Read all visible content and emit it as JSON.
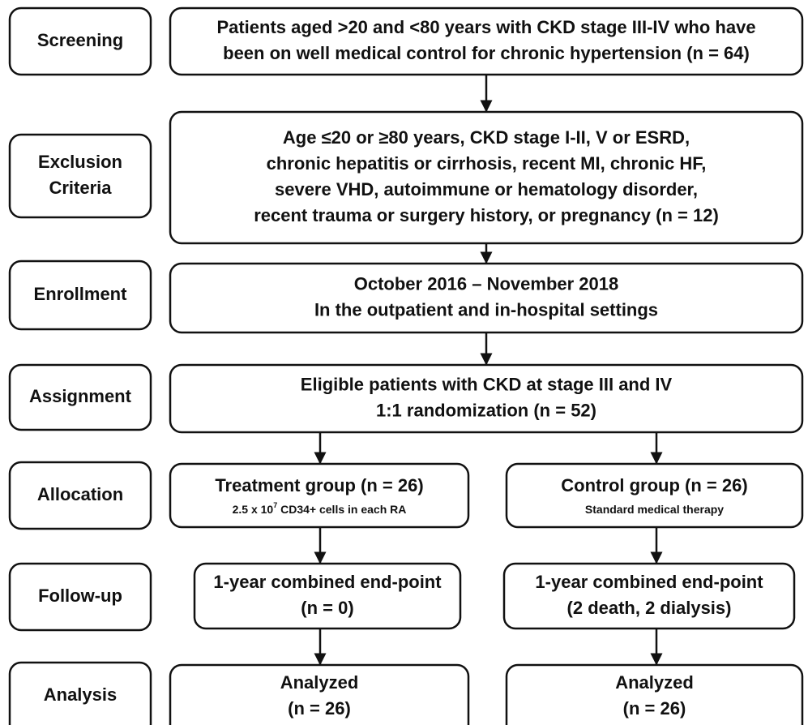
{
  "rows": [
    {
      "label": [
        "Screening"
      ],
      "boxes": [
        {
          "lines": [
            "Patients aged >20 and <80 years with CKD stage III-IV who have",
            "been on well medical control for chronic hypertension (n = 64)"
          ]
        }
      ]
    },
    {
      "label": [
        "Exclusion",
        "Criteria"
      ],
      "boxes": [
        {
          "lines": [
            "Age ≤20 or ≥80 years, CKD stage I-II, V or ESRD,",
            "chronic hepatitis or cirrhosis, recent MI, chronic HF,",
            "severe VHD, autoimmune or hematology disorder,",
            "recent trauma or surgery history, or pregnancy (n = 12)"
          ]
        }
      ]
    },
    {
      "label": [
        "Enrollment"
      ],
      "boxes": [
        {
          "lines": [
            "October 2016 – November 2018",
            "In the outpatient and in-hospital settings"
          ]
        }
      ]
    },
    {
      "label": [
        "Assignment"
      ],
      "boxes": [
        {
          "lines": [
            "Eligible patients with CKD at stage III and IV",
            "1:1 randomization (n = 52)"
          ]
        }
      ]
    },
    {
      "label": [
        "Allocation"
      ],
      "boxes": [
        {
          "lines": [
            "Treatment group (n = 26)"
          ],
          "note": [
            "2.5 x 10",
            "7",
            " CD34+ cells in each RA"
          ]
        },
        {
          "lines": [
            "Control group (n = 26)"
          ],
          "note": [
            "Standard medical therapy"
          ]
        }
      ]
    },
    {
      "label": [
        "Follow-up"
      ],
      "boxes": [
        {
          "lines": [
            "1-year combined end-point",
            "(n = 0)"
          ]
        },
        {
          "lines": [
            "1-year combined end-point",
            "(2 death, 2 dialysis)"
          ]
        }
      ]
    },
    {
      "label": [
        "Analysis"
      ],
      "boxes": [
        {
          "lines": [
            "Analyzed",
            "(n = 26)"
          ]
        },
        {
          "lines": [
            "Analyzed",
            "(n = 26)"
          ]
        }
      ]
    }
  ]
}
